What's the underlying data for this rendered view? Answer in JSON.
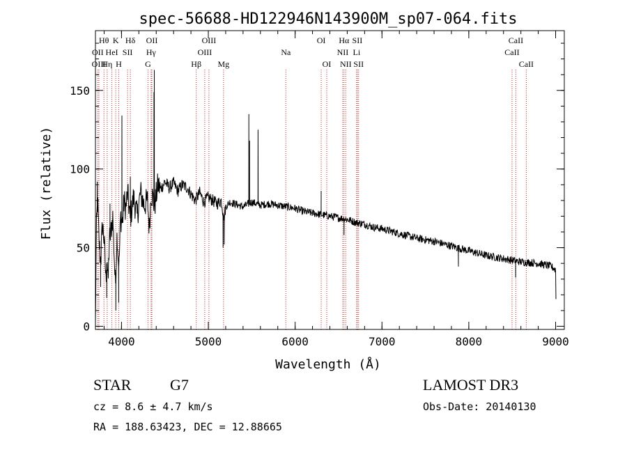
{
  "chart_data": {
    "type": "line",
    "title": "spec-56688-HD122946N143900M_sp07-064.fits",
    "xlabel": "Wavelength (Å)",
    "ylabel": "Flux (relative)",
    "xlim": [
      3700,
      9100
    ],
    "ylim": [
      -2,
      188
    ],
    "xticks": [
      4000,
      5000,
      6000,
      7000,
      8000,
      9000
    ],
    "yticks": [
      0,
      50,
      100,
      150
    ],
    "x_minor_step": 200,
    "y_minor_step": 10,
    "series": [
      {
        "name": "flux",
        "anchors": [
          [
            3700,
            0
          ],
          [
            3710,
            60
          ],
          [
            3725,
            80
          ],
          [
            3740,
            55
          ],
          [
            3760,
            40
          ],
          [
            3780,
            65
          ],
          [
            3800,
            55
          ],
          [
            3820,
            30
          ],
          [
            3835,
            45
          ],
          [
            3845,
            25
          ],
          [
            3860,
            55
          ],
          [
            3880,
            60
          ],
          [
            3900,
            70
          ],
          [
            3930,
            25
          ],
          [
            3950,
            60
          ],
          [
            3970,
            35
          ],
          [
            3990,
            70
          ],
          [
            4010,
            65
          ],
          [
            4030,
            80
          ],
          [
            4050,
            75
          ],
          [
            4070,
            85
          ],
          [
            4100,
            68
          ],
          [
            4140,
            82
          ],
          [
            4180,
            70
          ],
          [
            4220,
            85
          ],
          [
            4260,
            77
          ],
          [
            4300,
            80
          ],
          [
            4320,
            62
          ],
          [
            4340,
            85
          ],
          [
            4360,
            82
          ],
          [
            4380,
            76
          ],
          [
            4420,
            90
          ],
          [
            4450,
            87
          ],
          [
            4500,
            92
          ],
          [
            4550,
            88
          ],
          [
            4600,
            91
          ],
          [
            4650,
            86
          ],
          [
            4700,
            90
          ],
          [
            4760,
            88
          ],
          [
            4800,
            84
          ],
          [
            4850,
            80
          ],
          [
            4900,
            85
          ],
          [
            4950,
            79
          ],
          [
            5000,
            82
          ],
          [
            5050,
            80
          ],
          [
            5100,
            78
          ],
          [
            5150,
            80
          ],
          [
            5180,
            68
          ],
          [
            5200,
            76
          ],
          [
            5250,
            79
          ],
          [
            5300,
            78
          ],
          [
            5400,
            76
          ],
          [
            5500,
            79
          ],
          [
            5600,
            77
          ],
          [
            5700,
            78
          ],
          [
            5800,
            77
          ],
          [
            5900,
            76
          ],
          [
            6000,
            75
          ],
          [
            6100,
            73
          ],
          [
            6200,
            72
          ],
          [
            6300,
            71
          ],
          [
            6400,
            70
          ],
          [
            6500,
            69
          ],
          [
            6600,
            68
          ],
          [
            6700,
            66
          ],
          [
            6800,
            65
          ],
          [
            6900,
            63
          ],
          [
            7000,
            62
          ],
          [
            7200,
            59
          ],
          [
            7400,
            56
          ],
          [
            7600,
            54
          ],
          [
            7800,
            51
          ],
          [
            8000,
            48
          ],
          [
            8200,
            45
          ],
          [
            8400,
            43
          ],
          [
            8600,
            41
          ],
          [
            8800,
            40
          ],
          [
            8950,
            38
          ],
          [
            9000,
            36
          ],
          [
            9005,
            12
          ]
        ],
        "spikes": [
          [
            3722,
            92
          ],
          [
            3760,
            25
          ],
          [
            3830,
            18
          ],
          [
            3868,
            78
          ],
          [
            3935,
            10
          ],
          [
            3968,
            15
          ],
          [
            4005,
            134
          ],
          [
            4102,
            95
          ],
          [
            4374,
            149
          ],
          [
            4378,
            163
          ],
          [
            5170,
            50
          ],
          [
            5183,
            52
          ],
          [
            5467,
            135
          ],
          [
            5475,
            118
          ],
          [
            5573,
            125
          ],
          [
            6300,
            86
          ],
          [
            6563,
            58
          ],
          [
            7880,
            38
          ],
          [
            8540,
            31
          ]
        ]
      }
    ],
    "line_ids": [
      {
        "label": "Hθ",
        "wave": 3798,
        "row": 1
      },
      {
        "label": "OII",
        "wave": 3727,
        "row": 2
      },
      {
        "label": "OIII",
        "wave": 3740,
        "row": 3
      },
      {
        "label": "K",
        "wave": 3934,
        "row": 1
      },
      {
        "label": "HeI",
        "wave": 3889,
        "row": 2
      },
      {
        "label": "Hη",
        "wave": 3835,
        "row": 3
      },
      {
        "label": "SII",
        "wave": 4070,
        "row": 2
      },
      {
        "label": "H",
        "wave": 3968,
        "row": 3
      },
      {
        "label": "Hδ",
        "wave": 4102,
        "row": 1
      },
      {
        "label": "OII",
        "wave": 4350,
        "row": 1
      },
      {
        "label": "Hγ",
        "wave": 4341,
        "row": 2
      },
      {
        "label": "G",
        "wave": 4305,
        "row": 3
      },
      {
        "label": "OIII",
        "wave": 5007,
        "row": 1
      },
      {
        "label": "OIII",
        "wave": 4959,
        "row": 2
      },
      {
        "label": "Hβ",
        "wave": 4861,
        "row": 3
      },
      {
        "label": "Mg",
        "wave": 5175,
        "row": 3
      },
      {
        "label": "Na",
        "wave": 5893,
        "row": 2
      },
      {
        "label": "OI",
        "wave": 6300,
        "row": 1
      },
      {
        "label": "OI",
        "wave": 6364,
        "row": 3
      },
      {
        "label": "Hα",
        "wave": 6563,
        "row": 1
      },
      {
        "label": "SII",
        "wave": 6716,
        "row": 1
      },
      {
        "label": "NII",
        "wave": 6548,
        "row": 2
      },
      {
        "label": "Li",
        "wave": 6708,
        "row": 2
      },
      {
        "label": "NII",
        "wave": 6583,
        "row": 3
      },
      {
        "label": "SII",
        "wave": 6731,
        "row": 3
      },
      {
        "label": "CaII",
        "wave": 8542,
        "row": 1
      },
      {
        "label": "CaII",
        "wave": 8498,
        "row": 2
      },
      {
        "label": "CaII",
        "wave": 8662,
        "row": 3
      }
    ]
  },
  "info": {
    "object_class": "STAR",
    "subclass": "G7",
    "survey": "LAMOST DR3",
    "cz": "cz = 8.6 ± 4.7 km/s",
    "obs_date": "Obs-Date: 20140130",
    "coords": "RA = 188.63423, DEC =  12.88665"
  }
}
